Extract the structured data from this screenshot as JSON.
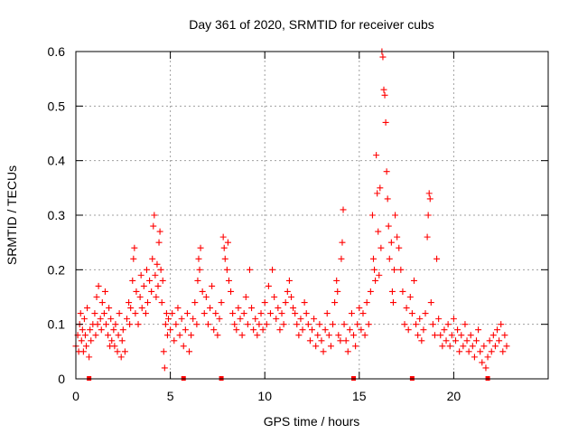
{
  "chart_data": {
    "type": "scatter",
    "title": "Day 361 of 2020, SRMTID for receiver cubs",
    "xlabel": "GPS time / hours",
    "ylabel": "SRMTID / TECUs",
    "xlim": [
      0,
      25
    ],
    "ylim": [
      0,
      0.6
    ],
    "xticks": [
      0,
      5,
      10,
      15,
      20
    ],
    "xtick_labels": [
      "0",
      "5",
      "10",
      "15",
      "20"
    ],
    "yticks": [
      0,
      0.1,
      0.2,
      0.3,
      0.4,
      0.5,
      0.6
    ],
    "ytick_labels": [
      "0",
      "0.1",
      "0.2",
      "0.3",
      "0.4",
      "0.5",
      "0.6"
    ],
    "grid": true,
    "marker": "plus",
    "color": "#ff0000",
    "series": [
      {
        "name": "SRMTID",
        "points": [
          [
            0.0,
            0.06
          ],
          [
            0.1,
            0.08
          ],
          [
            0.15,
            0.05
          ],
          [
            0.2,
            0.1
          ],
          [
            0.25,
            0.12
          ],
          [
            0.3,
            0.07
          ],
          [
            0.35,
            0.09
          ],
          [
            0.4,
            0.05
          ],
          [
            0.45,
            0.11
          ],
          [
            0.5,
            0.08
          ],
          [
            0.55,
            0.06
          ],
          [
            0.6,
            0.13
          ],
          [
            0.7,
            0.04
          ],
          [
            0.75,
            0.09
          ],
          [
            0.8,
            0.07
          ],
          [
            0.9,
            0.1
          ],
          [
            1.0,
            0.12
          ],
          [
            1.05,
            0.08
          ],
          [
            1.1,
            0.15
          ],
          [
            1.15,
            0.1
          ],
          [
            1.2,
            0.17
          ],
          [
            1.3,
            0.11
          ],
          [
            1.35,
            0.09
          ],
          [
            1.4,
            0.14
          ],
          [
            1.5,
            0.12
          ],
          [
            1.55,
            0.16
          ],
          [
            1.6,
            0.1
          ],
          [
            1.7,
            0.08
          ],
          [
            1.75,
            0.13
          ],
          [
            1.8,
            0.06
          ],
          [
            1.85,
            0.11
          ],
          [
            1.9,
            0.07
          ],
          [
            2.0,
            0.09
          ],
          [
            2.05,
            0.06
          ],
          [
            2.1,
            0.1
          ],
          [
            2.2,
            0.05
          ],
          [
            2.25,
            0.08
          ],
          [
            2.3,
            0.12
          ],
          [
            2.4,
            0.04
          ],
          [
            2.45,
            0.07
          ],
          [
            2.5,
            0.09
          ],
          [
            2.6,
            0.05
          ],
          [
            2.7,
            0.11
          ],
          [
            2.8,
            0.14
          ],
          [
            2.85,
            0.1
          ],
          [
            2.9,
            0.13
          ],
          [
            3.0,
            0.18
          ],
          [
            3.05,
            0.22
          ],
          [
            3.1,
            0.24
          ],
          [
            3.15,
            0.12
          ],
          [
            3.2,
            0.16
          ],
          [
            3.3,
            0.1
          ],
          [
            3.4,
            0.15
          ],
          [
            3.45,
            0.19
          ],
          [
            3.5,
            0.13
          ],
          [
            3.6,
            0.17
          ],
          [
            3.7,
            0.12
          ],
          [
            3.75,
            0.2
          ],
          [
            3.8,
            0.14
          ],
          [
            3.9,
            0.18
          ],
          [
            4.0,
            0.16
          ],
          [
            4.05,
            0.22
          ],
          [
            4.1,
            0.28
          ],
          [
            4.15,
            0.3
          ],
          [
            4.2,
            0.19
          ],
          [
            4.25,
            0.15
          ],
          [
            4.3,
            0.21
          ],
          [
            4.35,
            0.17
          ],
          [
            4.4,
            0.25
          ],
          [
            4.45,
            0.27
          ],
          [
            4.5,
            0.2
          ],
          [
            4.55,
            0.14
          ],
          [
            4.6,
            0.18
          ],
          [
            4.65,
            0.05
          ],
          [
            4.7,
            0.02
          ],
          [
            4.75,
            0.1
          ],
          [
            4.8,
            0.12
          ],
          [
            4.85,
            0.08
          ],
          [
            4.9,
            0.11
          ],
          [
            5.0,
            0.09
          ],
          [
            5.1,
            0.12
          ],
          [
            5.2,
            0.07
          ],
          [
            5.3,
            0.1
          ],
          [
            5.4,
            0.13
          ],
          [
            5.5,
            0.08
          ],
          [
            5.6,
            0.11
          ],
          [
            5.7,
            0.06
          ],
          [
            5.8,
            0.09
          ],
          [
            5.9,
            0.12
          ],
          [
            6.0,
            0.05
          ],
          [
            6.1,
            0.08
          ],
          [
            6.2,
            0.11
          ],
          [
            6.3,
            0.14
          ],
          [
            6.4,
            0.1
          ],
          [
            6.45,
            0.18
          ],
          [
            6.5,
            0.22
          ],
          [
            6.55,
            0.2
          ],
          [
            6.6,
            0.24
          ],
          [
            6.7,
            0.16
          ],
          [
            6.8,
            0.12
          ],
          [
            6.9,
            0.15
          ],
          [
            7.0,
            0.1
          ],
          [
            7.1,
            0.13
          ],
          [
            7.2,
            0.17
          ],
          [
            7.3,
            0.09
          ],
          [
            7.4,
            0.12
          ],
          [
            7.5,
            0.08
          ],
          [
            7.6,
            0.11
          ],
          [
            7.7,
            0.14
          ],
          [
            7.8,
            0.26
          ],
          [
            7.85,
            0.24
          ],
          [
            7.9,
            0.22
          ],
          [
            8.0,
            0.2
          ],
          [
            8.05,
            0.25
          ],
          [
            8.1,
            0.18
          ],
          [
            8.2,
            0.16
          ],
          [
            8.3,
            0.12
          ],
          [
            8.4,
            0.1
          ],
          [
            8.5,
            0.09
          ],
          [
            8.6,
            0.13
          ],
          [
            8.7,
            0.11
          ],
          [
            8.8,
            0.08
          ],
          [
            8.9,
            0.12
          ],
          [
            9.0,
            0.15
          ],
          [
            9.1,
            0.1
          ],
          [
            9.2,
            0.2
          ],
          [
            9.3,
            0.13
          ],
          [
            9.4,
            0.09
          ],
          [
            9.5,
            0.11
          ],
          [
            9.6,
            0.08
          ],
          [
            9.7,
            0.1
          ],
          [
            9.8,
            0.12
          ],
          [
            9.9,
            0.09
          ],
          [
            10.0,
            0.14
          ],
          [
            10.1,
            0.1
          ],
          [
            10.2,
            0.17
          ],
          [
            10.3,
            0.12
          ],
          [
            10.4,
            0.2
          ],
          [
            10.5,
            0.15
          ],
          [
            10.6,
            0.11
          ],
          [
            10.7,
            0.13
          ],
          [
            10.8,
            0.09
          ],
          [
            10.9,
            0.12
          ],
          [
            11.0,
            0.1
          ],
          [
            11.1,
            0.14
          ],
          [
            11.2,
            0.16
          ],
          [
            11.3,
            0.18
          ],
          [
            11.4,
            0.15
          ],
          [
            11.5,
            0.13
          ],
          [
            11.6,
            0.12
          ],
          [
            11.7,
            0.1
          ],
          [
            11.8,
            0.08
          ],
          [
            11.9,
            0.11
          ],
          [
            12.0,
            0.09
          ],
          [
            12.1,
            0.14
          ],
          [
            12.2,
            0.12
          ],
          [
            12.3,
            0.1
          ],
          [
            12.4,
            0.07
          ],
          [
            12.5,
            0.09
          ],
          [
            12.6,
            0.11
          ],
          [
            12.7,
            0.06
          ],
          [
            12.8,
            0.08
          ],
          [
            12.9,
            0.1
          ],
          [
            13.0,
            0.07
          ],
          [
            13.1,
            0.05
          ],
          [
            13.2,
            0.09
          ],
          [
            13.3,
            0.12
          ],
          [
            13.4,
            0.08
          ],
          [
            13.5,
            0.06
          ],
          [
            13.6,
            0.1
          ],
          [
            13.7,
            0.14
          ],
          [
            13.8,
            0.18
          ],
          [
            13.85,
            0.16
          ],
          [
            13.9,
            0.08
          ],
          [
            14.0,
            0.07
          ],
          [
            14.05,
            0.22
          ],
          [
            14.1,
            0.25
          ],
          [
            14.15,
            0.31
          ],
          [
            14.2,
            0.1
          ],
          [
            14.3,
            0.07
          ],
          [
            14.4,
            0.05
          ],
          [
            14.5,
            0.09
          ],
          [
            14.6,
            0.12
          ],
          [
            14.7,
            0.08
          ],
          [
            14.8,
            0.06
          ],
          [
            14.9,
            0.1
          ],
          [
            15.0,
            0.13
          ],
          [
            15.1,
            0.09
          ],
          [
            15.2,
            0.12
          ],
          [
            15.3,
            0.08
          ],
          [
            15.4,
            0.14
          ],
          [
            15.5,
            0.1
          ],
          [
            15.6,
            0.16
          ],
          [
            15.7,
            0.3
          ],
          [
            15.75,
            0.22
          ],
          [
            15.8,
            0.2
          ],
          [
            15.85,
            0.18
          ],
          [
            15.9,
            0.41
          ],
          [
            15.95,
            0.34
          ],
          [
            16.0,
            0.27
          ],
          [
            16.05,
            0.19
          ],
          [
            16.1,
            0.35
          ],
          [
            16.15,
            0.24
          ],
          [
            16.2,
            0.6
          ],
          [
            16.25,
            0.59
          ],
          [
            16.3,
            0.53
          ],
          [
            16.35,
            0.52
          ],
          [
            16.4,
            0.47
          ],
          [
            16.45,
            0.38
          ],
          [
            16.5,
            0.33
          ],
          [
            16.55,
            0.28
          ],
          [
            16.6,
            0.22
          ],
          [
            16.7,
            0.25
          ],
          [
            16.75,
            0.16
          ],
          [
            16.8,
            0.14
          ],
          [
            16.85,
            0.2
          ],
          [
            16.9,
            0.3
          ],
          [
            17.0,
            0.26
          ],
          [
            17.1,
            0.24
          ],
          [
            17.2,
            0.2
          ],
          [
            17.3,
            0.16
          ],
          [
            17.4,
            0.1
          ],
          [
            17.5,
            0.13
          ],
          [
            17.6,
            0.09
          ],
          [
            17.7,
            0.15
          ],
          [
            17.8,
            0.12
          ],
          [
            17.9,
            0.18
          ],
          [
            18.0,
            0.1
          ],
          [
            18.1,
            0.08
          ],
          [
            18.2,
            0.11
          ],
          [
            18.3,
            0.07
          ],
          [
            18.4,
            0.09
          ],
          [
            18.5,
            0.12
          ],
          [
            18.6,
            0.26
          ],
          [
            18.65,
            0.3
          ],
          [
            18.7,
            0.34
          ],
          [
            18.75,
            0.33
          ],
          [
            18.8,
            0.14
          ],
          [
            18.9,
            0.1
          ],
          [
            19.0,
            0.08
          ],
          [
            19.1,
            0.22
          ],
          [
            19.2,
            0.11
          ],
          [
            19.3,
            0.08
          ],
          [
            19.4,
            0.06
          ],
          [
            19.5,
            0.09
          ],
          [
            19.6,
            0.07
          ],
          [
            19.7,
            0.1
          ],
          [
            19.8,
            0.06
          ],
          [
            19.9,
            0.08
          ],
          [
            20.0,
            0.11
          ],
          [
            20.1,
            0.07
          ],
          [
            20.2,
            0.09
          ],
          [
            20.3,
            0.05
          ],
          [
            20.4,
            0.08
          ],
          [
            20.5,
            0.06
          ],
          [
            20.6,
            0.1
          ],
          [
            20.7,
            0.07
          ],
          [
            20.8,
            0.05
          ],
          [
            20.9,
            0.08
          ],
          [
            21.0,
            0.06
          ],
          [
            21.1,
            0.04
          ],
          [
            21.2,
            0.07
          ],
          [
            21.3,
            0.09
          ],
          [
            21.4,
            0.05
          ],
          [
            21.5,
            0.03
          ],
          [
            21.6,
            0.06
          ],
          [
            21.7,
            0.02
          ],
          [
            21.8,
            0.04
          ],
          [
            21.9,
            0.07
          ],
          [
            22.0,
            0.05
          ],
          [
            22.1,
            0.08
          ],
          [
            22.2,
            0.06
          ],
          [
            22.3,
            0.09
          ],
          [
            22.4,
            0.07
          ],
          [
            22.5,
            0.1
          ],
          [
            22.6,
            0.05
          ],
          [
            22.7,
            0.08
          ],
          [
            22.8,
            0.06
          ]
        ]
      }
    ],
    "axis_markers_x": [
      0.7,
      5.7,
      7.7,
      14.7,
      17.8,
      21.8
    ]
  }
}
